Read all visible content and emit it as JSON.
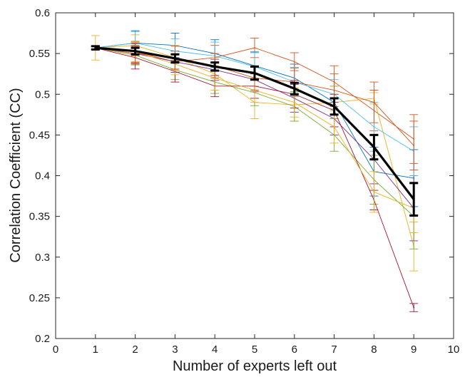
{
  "chart_data": {
    "type": "line",
    "title": "",
    "xlabel": "Number of experts left out",
    "ylabel": "Correlation Coefficient (CC)",
    "xlim": [
      0,
      10
    ],
    "ylim": [
      0.2,
      0.6
    ],
    "xticks": [
      "0",
      "1",
      "2",
      "3",
      "4",
      "5",
      "6",
      "7",
      "8",
      "9",
      "10"
    ],
    "yticks": [
      "0.2",
      "0.25",
      "0.3",
      "0.35",
      "0.4",
      "0.45",
      "0.5",
      "0.55",
      "0.6"
    ],
    "grid": false,
    "legend": "none",
    "x": [
      1,
      2,
      3,
      4,
      5,
      6,
      7,
      8,
      9
    ],
    "mean_series": {
      "color": "#000000",
      "values": [
        0.557,
        0.553,
        0.544,
        0.534,
        0.526,
        0.507,
        0.485,
        0.435,
        0.371
      ],
      "errors": [
        0.002,
        0.004,
        0.005,
        0.005,
        0.008,
        0.007,
        0.01,
        0.015,
        0.02
      ]
    },
    "series": [
      {
        "color": "#0072BD",
        "values": [
          0.557,
          0.563,
          0.56,
          0.55,
          0.535,
          0.52,
          0.49,
          0.405,
          0.397
        ],
        "errors": [
          0.002,
          0.015,
          0.015,
          0.017,
          0.017,
          0.017,
          0.02,
          0.03,
          0.035
        ]
      },
      {
        "color": "#D95319",
        "values": [
          0.557,
          0.552,
          0.54,
          0.545,
          0.557,
          0.54,
          0.515,
          0.48,
          0.445
        ],
        "errors": [
          0.002,
          0.013,
          0.013,
          0.015,
          0.012,
          0.011,
          0.02,
          0.025,
          0.03
        ]
      },
      {
        "color": "#EDB120",
        "values": [
          0.557,
          0.56,
          0.545,
          0.525,
          0.49,
          0.487,
          0.49,
          0.495,
          0.313
        ],
        "errors": [
          0.015,
          0.013,
          0.015,
          0.02,
          0.02,
          0.02,
          0.02,
          0.007,
          0.03
        ]
      },
      {
        "color": "#7E2F8E",
        "values": [
          0.557,
          0.55,
          0.54,
          0.53,
          0.518,
          0.495,
          0.47,
          0.42,
          0.36
        ],
        "errors": [
          0.002,
          0.012,
          0.013,
          0.013,
          0.015,
          0.017,
          0.02,
          0.03,
          0.04
        ]
      },
      {
        "color": "#77AC30",
        "values": [
          0.557,
          0.548,
          0.53,
          0.515,
          0.502,
          0.485,
          0.45,
          0.395,
          0.35
        ],
        "errors": [
          0.002,
          0.012,
          0.012,
          0.014,
          0.016,
          0.018,
          0.02,
          0.03,
          0.04
        ]
      },
      {
        "color": "#4DBEEE",
        "values": [
          0.557,
          0.563,
          0.553,
          0.547,
          0.534,
          0.515,
          0.5,
          0.46,
          0.43
        ],
        "errors": [
          0.002,
          0.014,
          0.015,
          0.017,
          0.017,
          0.018,
          0.018,
          0.03,
          0.03
        ]
      },
      {
        "color": "#A2142F",
        "values": [
          0.557,
          0.545,
          0.528,
          0.51,
          0.51,
          0.5,
          0.48,
          0.37,
          0.238
        ],
        "errors": [
          0.002,
          0.014,
          0.013,
          0.013,
          0.015,
          0.017,
          0.02,
          0.012,
          0.005
        ]
      },
      {
        "color": "#EDB120",
        "values": [
          0.557,
          0.552,
          0.537,
          0.52,
          0.505,
          0.49,
          0.46,
          0.38,
          0.36
        ],
        "errors": [
          0.002,
          0.012,
          0.013,
          0.015,
          0.015,
          0.018,
          0.02,
          0.025,
          0.03
        ]
      },
      {
        "color": "#D95319",
        "values": [
          0.557,
          0.55,
          0.545,
          0.535,
          0.52,
          0.515,
          0.505,
          0.49,
          0.437
        ],
        "errors": [
          0.002,
          0.013,
          0.014,
          0.015,
          0.015,
          0.017,
          0.02,
          0.025,
          0.03
        ]
      }
    ]
  }
}
